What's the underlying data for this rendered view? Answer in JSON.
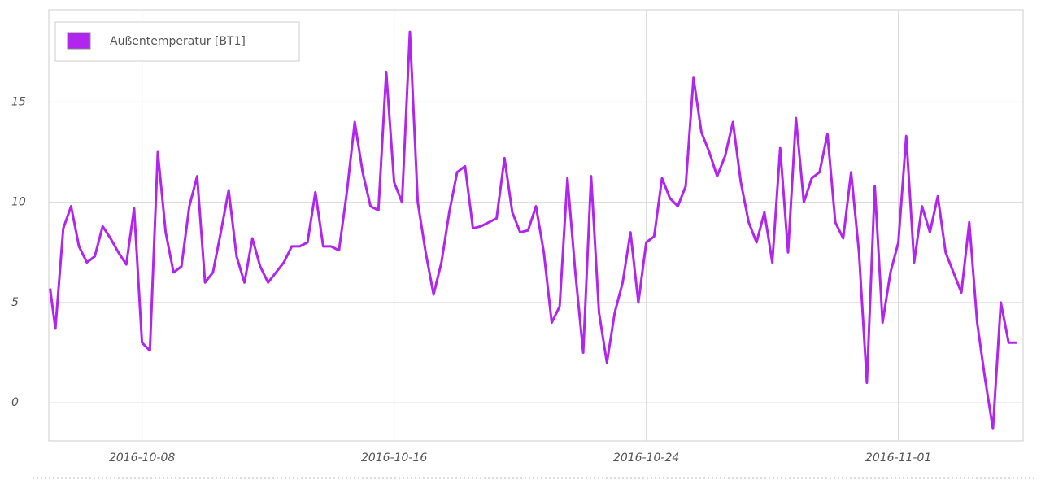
{
  "chart_data": {
    "type": "line",
    "x": [
      "2016-10-05T02:00",
      "2016-10-05T06:00",
      "2016-10-05T12:00",
      "2016-10-05T18:00",
      "2016-10-06T00:00",
      "2016-10-06T06:00",
      "2016-10-06T12:00",
      "2016-10-06T18:00",
      "2016-10-07T00:00",
      "2016-10-07T06:00",
      "2016-10-07T12:00",
      "2016-10-07T18:00",
      "2016-10-08T00:00",
      "2016-10-08T06:00",
      "2016-10-08T12:00",
      "2016-10-08T18:00",
      "2016-10-09T00:00",
      "2016-10-09T06:00",
      "2016-10-09T12:00",
      "2016-10-09T18:00",
      "2016-10-10T00:00",
      "2016-10-10T06:00",
      "2016-10-10T12:00",
      "2016-10-10T18:00",
      "2016-10-11T00:00",
      "2016-10-11T06:00",
      "2016-10-11T12:00",
      "2016-10-11T18:00",
      "2016-10-12T00:00",
      "2016-10-12T06:00",
      "2016-10-12T12:00",
      "2016-10-12T18:00",
      "2016-10-13T00:00",
      "2016-10-13T06:00",
      "2016-10-13T12:00",
      "2016-10-13T18:00",
      "2016-10-14T00:00",
      "2016-10-14T06:00",
      "2016-10-14T12:00",
      "2016-10-14T18:00",
      "2016-10-15T00:00",
      "2016-10-15T06:00",
      "2016-10-15T12:00",
      "2016-10-15T18:00",
      "2016-10-16T00:00",
      "2016-10-16T06:00",
      "2016-10-16T12:00",
      "2016-10-16T18:00",
      "2016-10-17T00:00",
      "2016-10-17T06:00",
      "2016-10-17T12:00",
      "2016-10-17T18:00",
      "2016-10-18T00:00",
      "2016-10-18T06:00",
      "2016-10-18T12:00",
      "2016-10-18T18:00",
      "2016-10-19T00:00",
      "2016-10-19T06:00",
      "2016-10-19T12:00",
      "2016-10-19T18:00",
      "2016-10-20T00:00",
      "2016-10-20T06:00",
      "2016-10-20T12:00",
      "2016-10-20T18:00",
      "2016-10-21T00:00",
      "2016-10-21T06:00",
      "2016-10-21T12:00",
      "2016-10-21T18:00",
      "2016-10-22T00:00",
      "2016-10-22T06:00",
      "2016-10-22T12:00",
      "2016-10-22T18:00",
      "2016-10-23T00:00",
      "2016-10-23T06:00",
      "2016-10-23T12:00",
      "2016-10-23T18:00",
      "2016-10-24T00:00",
      "2016-10-24T06:00",
      "2016-10-24T12:00",
      "2016-10-24T18:00",
      "2016-10-25T00:00",
      "2016-10-25T06:00",
      "2016-10-25T12:00",
      "2016-10-25T18:00",
      "2016-10-26T00:00",
      "2016-10-26T06:00",
      "2016-10-26T12:00",
      "2016-10-26T18:00",
      "2016-10-27T00:00",
      "2016-10-27T06:00",
      "2016-10-27T12:00",
      "2016-10-27T18:00",
      "2016-10-28T00:00",
      "2016-10-28T06:00",
      "2016-10-28T12:00",
      "2016-10-28T18:00",
      "2016-10-29T00:00",
      "2016-10-29T06:00",
      "2016-10-29T12:00",
      "2016-10-29T18:00",
      "2016-10-30T00:00",
      "2016-10-30T06:00",
      "2016-10-30T12:00",
      "2016-10-30T18:00",
      "2016-10-31T00:00",
      "2016-10-31T06:00",
      "2016-10-31T12:00",
      "2016-10-31T18:00",
      "2016-11-01T00:00",
      "2016-11-01T06:00",
      "2016-11-01T12:00",
      "2016-11-01T18:00",
      "2016-11-02T00:00",
      "2016-11-02T06:00",
      "2016-11-02T12:00",
      "2016-11-02T18:00",
      "2016-11-03T00:00",
      "2016-11-03T06:00",
      "2016-11-03T12:00",
      "2016-11-03T18:00",
      "2016-11-04T00:00",
      "2016-11-04T06:00",
      "2016-11-04T12:00",
      "2016-11-04T18:00"
    ],
    "series": [
      {
        "name": "Außentemperatur [BT1]",
        "color": "#b026ee",
        "values": [
          5.7,
          3.7,
          8.7,
          9.8,
          7.8,
          7.0,
          7.3,
          8.8,
          8.2,
          7.5,
          6.9,
          9.7,
          3.0,
          2.6,
          12.5,
          8.5,
          6.5,
          6.8,
          9.8,
          11.3,
          6.0,
          6.5,
          8.5,
          10.6,
          7.3,
          6.0,
          8.2,
          6.8,
          6.0,
          6.5,
          7.0,
          7.8,
          7.8,
          8.0,
          10.5,
          7.8,
          7.8,
          7.6,
          10.5,
          14.0,
          11.5,
          9.8,
          9.6,
          16.5,
          11.0,
          10.0,
          18.5,
          10.0,
          7.5,
          5.4,
          7.0,
          9.5,
          11.5,
          11.8,
          8.7,
          8.8,
          9.0,
          9.2,
          12.2,
          9.5,
          8.5,
          8.6,
          9.8,
          7.5,
          4.0,
          4.8,
          11.2,
          6.5,
          2.5,
          11.3,
          4.5,
          2.0,
          4.5,
          6.0,
          8.5,
          5.0,
          8.0,
          8.3,
          11.2,
          10.2,
          9.8,
          10.8,
          16.2,
          13.5,
          12.5,
          11.3,
          12.3,
          14.0,
          11.0,
          9.0,
          8.0,
          9.5,
          7.0,
          12.7,
          7.5,
          14.2,
          10.0,
          11.2,
          11.5,
          13.4,
          9.0,
          8.2,
          11.5,
          7.5,
          1.0,
          10.8,
          4.0,
          6.5,
          8.0,
          13.3,
          7.0,
          9.8,
          8.5,
          10.3,
          7.5,
          6.5,
          5.5,
          9.0,
          4.0,
          1.2,
          -1.3,
          5.0,
          3.0,
          3.0
        ]
      }
    ],
    "xlim": [
      "2016-10-05T01:00",
      "2016-11-04T23:00"
    ],
    "xticks": [
      "2016-10-08",
      "2016-10-16",
      "2016-10-24",
      "2016-11-01"
    ],
    "ylim": [
      -1.9,
      19.6
    ],
    "yticks": [
      0,
      5,
      10,
      15
    ],
    "grid": true,
    "legend": "top-left"
  }
}
